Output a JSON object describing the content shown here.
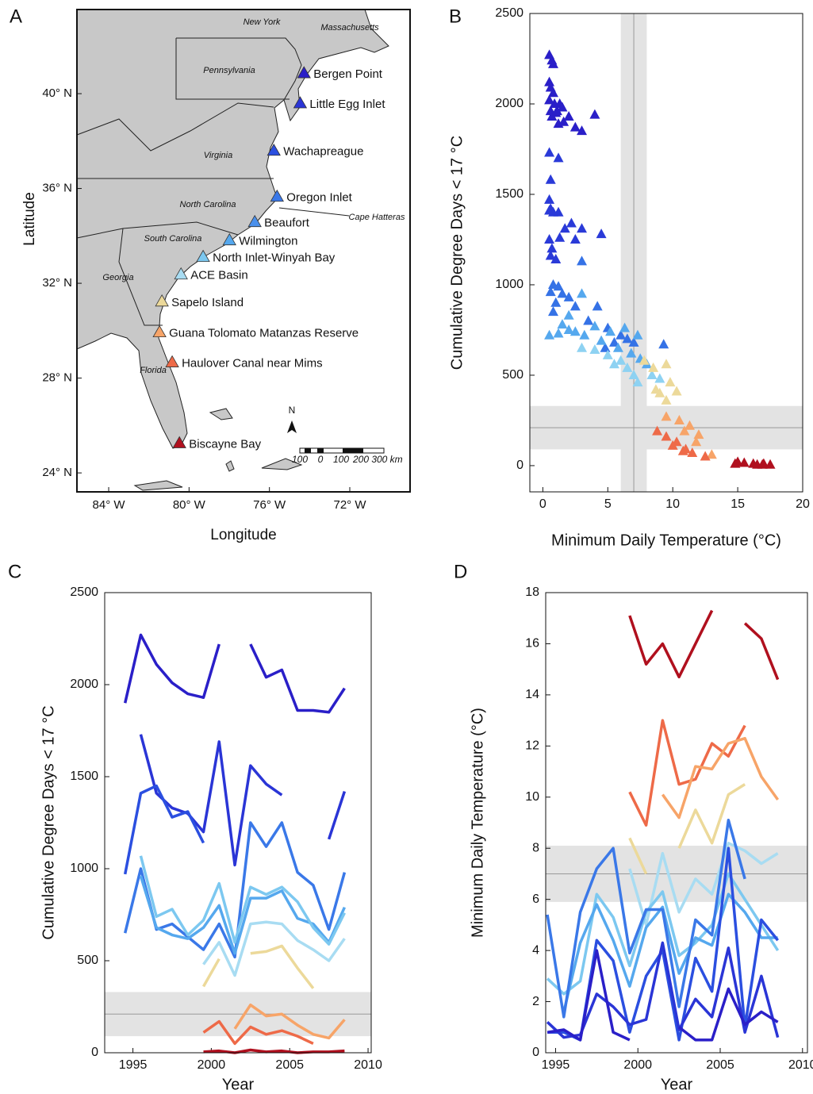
{
  "map": {
    "panel": "A",
    "xlabel": "Longitude",
    "ylabel": "Latitude",
    "xlim": [
      -85.58,
      -69.0
    ],
    "ylim": [
      23.2,
      43.55
    ],
    "xticks": [
      {
        "value": -84,
        "label": "84° W"
      },
      {
        "value": -80,
        "label": "80° W"
      },
      {
        "value": -76,
        "label": "76° W"
      },
      {
        "value": -72,
        "label": "72° W"
      }
    ],
    "yticks": [
      {
        "value": 24,
        "label": "24° N"
      },
      {
        "value": 28,
        "label": "28° N"
      },
      {
        "value": 32,
        "label": "32° N"
      },
      {
        "value": 36,
        "label": "36° N"
      },
      {
        "value": 40,
        "label": "40° N"
      }
    ],
    "states": [
      "New York",
      "Massachusetts",
      "Pennsylvania",
      "Virginia",
      "North Carolina",
      "South Carolina",
      "Georgia",
      "Florida",
      "Cape Hatteras"
    ],
    "north": "N",
    "scale_labels": [
      "100",
      "0",
      "100",
      "200",
      "300 km"
    ],
    "sites": [
      {
        "name": "Bergen Point",
        "lon": -74.28,
        "lat": 40.87,
        "color": "#2a1fc8"
      },
      {
        "name": "Little Egg Inlet",
        "lon": -74.47,
        "lat": 39.6,
        "color": "#2a35d6"
      },
      {
        "name": "Wachapreague",
        "lon": -75.78,
        "lat": 37.6,
        "color": "#2b4fe0"
      },
      {
        "name": "Oregon Inlet",
        "lon": -75.62,
        "lat": 35.66,
        "color": "#3a78e8"
      },
      {
        "name": "Beaufort",
        "lon": -76.73,
        "lat": 34.59,
        "color": "#4a90ec"
      },
      {
        "name": "Wilmington",
        "lon": -77.99,
        "lat": 33.82,
        "color": "#55a8ee"
      },
      {
        "name": "North Inlet-Winyah Bay",
        "lon": -79.3,
        "lat": 33.12,
        "color": "#7cc8f0"
      },
      {
        "name": "ACE Basin",
        "lon": -80.4,
        "lat": 32.38,
        "color": "#a8dcf2"
      },
      {
        "name": "Sapelo Island",
        "lon": -81.35,
        "lat": 31.24,
        "color": "#ecd99a"
      },
      {
        "name": "Guana Tolomato Matanzas Reserve",
        "lon": -81.47,
        "lat": 29.94,
        "color": "#f7a468"
      },
      {
        "name": "Haulover Canal near Mims",
        "lon": -80.84,
        "lat": 28.67,
        "color": "#ee6a48"
      },
      {
        "name": "Biscayne Bay",
        "lon": -80.48,
        "lat": 25.26,
        "color": "#b0101e"
      }
    ]
  },
  "chart_data": [
    {
      "type": "scatter",
      "panel": "B",
      "xlabel": "Minimum Daily Temperature (°C)",
      "ylabel": "Cumulative Degree Days < 17 °C",
      "xlim": [
        -1,
        20
      ],
      "ylim": [
        -145,
        2500
      ],
      "xticks": [
        0,
        5,
        10,
        15,
        20
      ],
      "yticks": [
        0,
        500,
        1000,
        1500,
        2000,
        2500
      ],
      "vband": [
        6,
        8
      ],
      "vline": 7,
      "hband": [
        90,
        330
      ],
      "hline": 210,
      "series": [
        {
          "color": "#2a1fc8",
          "x": [
            0.5,
            0.7,
            0.8,
            0.5,
            0.6,
            0.8,
            0.5,
            0.9,
            1.3,
            0.6,
            1.0,
            1.5,
            2.0,
            0.7,
            1.2,
            1.6,
            2.5,
            3.0,
            4.0,
            1.1
          ],
          "values": [
            2270,
            2240,
            2220,
            2120,
            2090,
            2060,
            2020,
            2000,
            2000,
            1960,
            1950,
            1980,
            1930,
            1930,
            1890,
            1900,
            1870,
            1850,
            1940,
            1960
          ]
        },
        {
          "color": "#2a3ad8",
          "x": [
            0.5,
            1.2,
            0.6,
            0.5,
            0.6,
            0.8,
            1.2,
            0.5,
            2.2,
            1.7,
            3.0,
            4.5,
            0.5,
            1.3,
            0.7,
            0.6,
            1.0,
            2.5
          ],
          "values": [
            1730,
            1700,
            1580,
            1470,
            1420,
            1400,
            1400,
            1410,
            1340,
            1310,
            1310,
            1280,
            1250,
            1260,
            1200,
            1160,
            1140,
            1250
          ]
        },
        {
          "color": "#3572e6",
          "x": [
            0.8,
            1.2,
            0.6,
            1.5,
            2.0,
            3.0,
            1.0,
            2.5,
            4.2,
            0.8,
            3.5,
            5.0,
            6.0,
            6.5,
            7.0,
            5.5,
            9.3,
            4.8
          ],
          "values": [
            1000,
            990,
            960,
            950,
            930,
            1130,
            900,
            880,
            880,
            850,
            800,
            760,
            720,
            700,
            680,
            680,
            670,
            650
          ]
        },
        {
          "color": "#55a8ee",
          "x": [
            0.5,
            1.2,
            2.0,
            2.5,
            3.2,
            4.0,
            5.2,
            6.3,
            7.3,
            3.0,
            2.0,
            1.5,
            4.5,
            5.8,
            6.8,
            7.5,
            8.0
          ],
          "values": [
            720,
            730,
            750,
            740,
            720,
            770,
            740,
            760,
            720,
            950,
            830,
            780,
            690,
            650,
            620,
            590,
            560
          ]
        },
        {
          "color": "#8ed2f2",
          "x": [
            3.0,
            4.0,
            5.0,
            6.0,
            7.0,
            7.3,
            6.5,
            8.4,
            9.0,
            5.5
          ],
          "values": [
            650,
            640,
            610,
            580,
            500,
            460,
            540,
            500,
            480,
            560
          ]
        },
        {
          "color": "#ecd99a",
          "x": [
            7.8,
            8.5,
            9.5,
            9.8,
            10.3,
            9.0,
            9.5,
            8.7
          ],
          "values": [
            580,
            540,
            560,
            460,
            410,
            400,
            360,
            420
          ]
        },
        {
          "color": "#f7a468",
          "x": [
            9.5,
            10.5,
            11.3,
            12.0,
            11.8,
            13.0,
            10.9
          ],
          "values": [
            270,
            250,
            220,
            170,
            130,
            60,
            190
          ]
        },
        {
          "color": "#ee6a48",
          "x": [
            8.8,
            9.5,
            10.3,
            10.0,
            11.0,
            10.8,
            12.5,
            11.5
          ],
          "values": [
            190,
            160,
            130,
            110,
            90,
            80,
            50,
            70
          ]
        },
        {
          "color": "#b0101e",
          "x": [
            15.0,
            15.5,
            16.2,
            16.5,
            17.0,
            17.5,
            14.8,
            16.9
          ],
          "values": [
            20,
            15,
            10,
            5,
            10,
            5,
            10,
            5
          ]
        }
      ]
    },
    {
      "type": "line",
      "panel": "C",
      "xlabel": "Year",
      "ylabel": "Cumulative Degree Days < 17 °C",
      "xlim": [
        1993.2,
        2010.2
      ],
      "ylim": [
        0,
        2500
      ],
      "xticks": [
        1995,
        2000,
        2005,
        2010
      ],
      "yticks": [
        0,
        500,
        1000,
        1500,
        2000,
        2500
      ],
      "hband": [
        90,
        330
      ],
      "hline": 210,
      "x": [
        1994.5,
        1995.5,
        1996.5,
        1997.5,
        1998.5,
        1999.5,
        2000.5,
        2001.5,
        2002.5,
        2003.5,
        2004.5,
        2005.5,
        2006.5,
        2007.5,
        2008.5
      ],
      "series": [
        {
          "color": "#2a1fc8",
          "values": [
            1900,
            2270,
            2110,
            2010,
            1950,
            1930,
            2220,
            null,
            2220,
            2040,
            2080,
            1860,
            1860,
            1850,
            1980
          ]
        },
        {
          "color": "#2a35d6",
          "values": [
            null,
            1730,
            1410,
            1330,
            1300,
            1200,
            1690,
            1020,
            1560,
            1460,
            1400,
            null,
            null,
            1160,
            1420
          ]
        },
        {
          "color": "#2b4fe0",
          "values": [
            970,
            1410,
            1450,
            1280,
            1310,
            1140,
            null,
            null,
            null,
            null,
            null,
            null,
            null,
            null,
            null
          ]
        },
        {
          "color": "#3a78e8",
          "values": [
            650,
            1000,
            670,
            700,
            630,
            560,
            700,
            520,
            1250,
            1120,
            1250,
            980,
            910,
            670,
            980
          ]
        },
        {
          "color": "#55a8ee",
          "values": [
            null,
            960,
            680,
            640,
            620,
            680,
            800,
            540,
            840,
            840,
            880,
            730,
            700,
            600,
            790
          ]
        },
        {
          "color": "#7cc8f0",
          "values": [
            null,
            1070,
            740,
            780,
            640,
            720,
            920,
            600,
            900,
            860,
            900,
            820,
            680,
            590,
            760
          ]
        },
        {
          "color": "#a8dcf2",
          "values": [
            null,
            null,
            null,
            null,
            null,
            480,
            600,
            420,
            700,
            710,
            700,
            610,
            560,
            500,
            620
          ]
        },
        {
          "color": "#ecd99a",
          "values": [
            null,
            null,
            null,
            null,
            null,
            360,
            510,
            null,
            540,
            550,
            580,
            460,
            350,
            null,
            null
          ]
        },
        {
          "color": "#f7a468",
          "values": [
            null,
            null,
            null,
            null,
            null,
            null,
            null,
            130,
            260,
            200,
            210,
            150,
            100,
            80,
            180
          ]
        },
        {
          "color": "#ee6a48",
          "values": [
            null,
            null,
            null,
            null,
            null,
            110,
            170,
            50,
            140,
            100,
            120,
            90,
            50,
            null,
            null
          ]
        },
        {
          "color": "#b0101e",
          "values": [
            null,
            null,
            null,
            null,
            null,
            5,
            10,
            0,
            15,
            5,
            10,
            0,
            5,
            5,
            10
          ]
        }
      ]
    },
    {
      "type": "line",
      "panel": "D",
      "xlabel": "Year",
      "ylabel": "Minimum Daily Temperature (°C)",
      "xlim": [
        1994.4,
        2010.3
      ],
      "ylim": [
        0,
        18
      ],
      "xticks": [
        1995,
        2000,
        2005,
        2010
      ],
      "yticks": [
        0,
        2,
        4,
        6,
        8,
        10,
        12,
        14,
        16,
        18
      ],
      "hband": [
        5.9,
        8.1
      ],
      "hline": 7,
      "x": [
        1994.5,
        1995.5,
        1996.5,
        1997.5,
        1998.5,
        1999.5,
        2000.5,
        2001.5,
        2002.5,
        2003.5,
        2004.5,
        2005.5,
        2006.5,
        2007.5,
        2008.5
      ],
      "series": [
        {
          "color": "#b0101e",
          "values": [
            null,
            null,
            null,
            null,
            null,
            17.1,
            15.2,
            16.0,
            14.7,
            16.0,
            17.3,
            null,
            16.8,
            16.2,
            14.6
          ]
        },
        {
          "color": "#ee6a48",
          "values": [
            null,
            null,
            null,
            null,
            null,
            10.2,
            8.9,
            13.0,
            10.5,
            10.7,
            12.1,
            11.6,
            12.8,
            null,
            null
          ]
        },
        {
          "color": "#f7a468",
          "values": [
            null,
            null,
            null,
            null,
            null,
            null,
            null,
            10.1,
            9.2,
            11.2,
            11.1,
            12.1,
            12.3,
            10.8,
            9.9
          ]
        },
        {
          "color": "#ecd99a",
          "values": [
            null,
            null,
            null,
            null,
            null,
            8.4,
            7.0,
            null,
            8.0,
            9.5,
            8.2,
            10.1,
            10.5,
            null,
            null
          ]
        },
        {
          "color": "#a8dcf2",
          "values": [
            null,
            null,
            null,
            null,
            null,
            7.2,
            5.0,
            7.8,
            5.5,
            6.8,
            6.2,
            8.2,
            7.9,
            7.4,
            7.8
          ]
        },
        {
          "color": "#7cc8f0",
          "values": [
            2.9,
            2.3,
            2.8,
            6.2,
            5.3,
            3.4,
            5.5,
            6.3,
            3.8,
            4.3,
            5.0,
            7.0,
            6.0,
            5.0,
            4.0
          ]
        },
        {
          "color": "#55a8ee",
          "values": [
            null,
            1.6,
            4.3,
            5.8,
            4.4,
            2.6,
            4.9,
            5.7,
            3.1,
            4.5,
            4.2,
            6.2,
            5.5,
            4.5,
            4.5
          ]
        },
        {
          "color": "#3a78e8",
          "values": [
            5.4,
            1.4,
            5.5,
            7.2,
            8.0,
            3.9,
            5.6,
            5.6,
            1.8,
            5.2,
            4.6,
            9.1,
            6.8,
            null,
            null
          ]
        },
        {
          "color": "#2b4fe0",
          "values": [
            0.8,
            0.8,
            0.5,
            4.4,
            3.6,
            0.8,
            3.0,
            4.0,
            0.5,
            3.7,
            2.4,
            8.0,
            1.0,
            5.2,
            4.4
          ]
        },
        {
          "color": "#2a35d6",
          "values": [
            1.2,
            0.6,
            0.7,
            2.3,
            1.8,
            1.1,
            1.3,
            4.3,
            0.9,
            2.1,
            1.4,
            4.1,
            0.8,
            3.0,
            0.6
          ]
        },
        {
          "color": "#2a1fc8",
          "values": [
            0.8,
            0.9,
            0.5,
            4.0,
            0.8,
            0.5,
            null,
            null,
            1.0,
            0.5,
            0.5,
            2.5,
            1.1,
            1.6,
            1.2
          ]
        }
      ]
    }
  ]
}
